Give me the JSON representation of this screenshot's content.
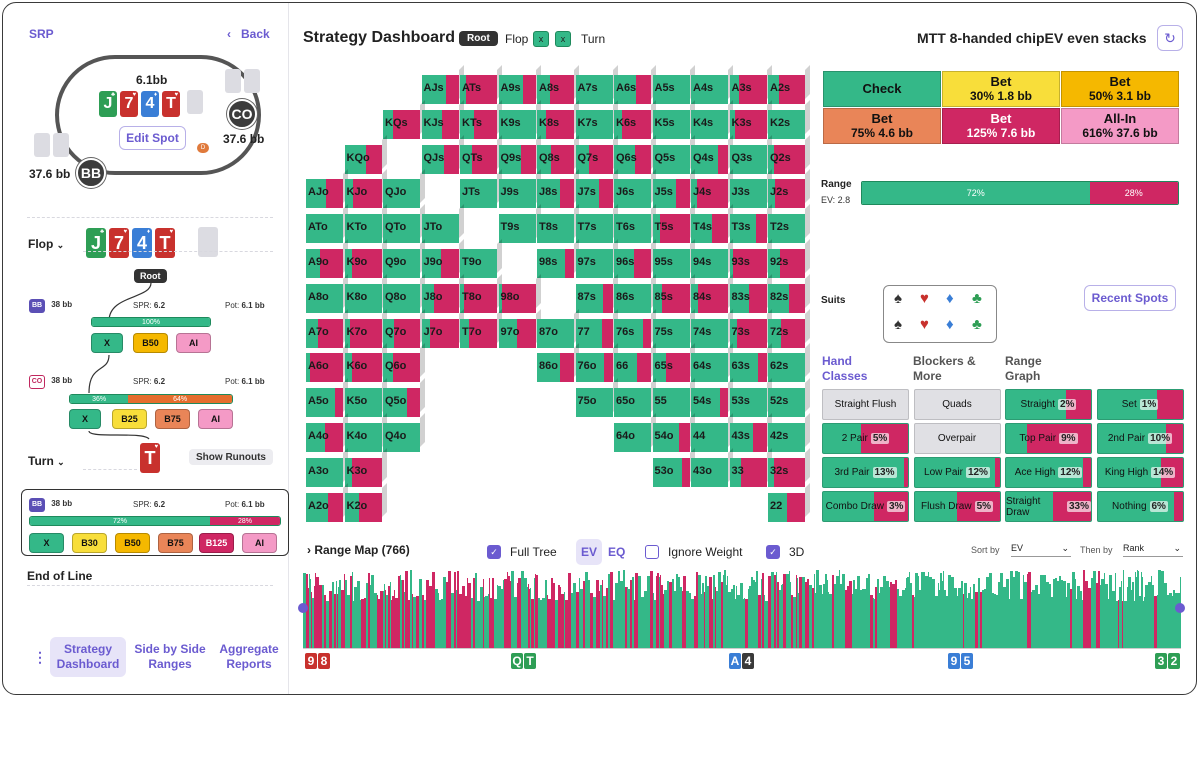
{
  "sidebar": {
    "spot_label": "SRP",
    "back_label": "Back",
    "pot_top": "6.1bb",
    "stack_co": "37.6 bb",
    "stack_bb": "37.6 bb",
    "board": [
      {
        "rank": "J",
        "color": "green"
      },
      {
        "rank": "7",
        "color": "red"
      },
      {
        "rank": "4",
        "color": "blue"
      },
      {
        "rank": "T",
        "color": "red"
      }
    ],
    "edit_spot": "Edit Spot",
    "dealer": "D",
    "pos_co": "CO",
    "pos_bb": "BB",
    "flop_label": "Flop",
    "flop_cards": [
      {
        "rank": "J",
        "color": "green"
      },
      {
        "rank": "7",
        "color": "red"
      },
      {
        "rank": "4",
        "color": "blue"
      },
      {
        "rank": "T",
        "color": "red"
      }
    ],
    "root_label": "Root",
    "node1": {
      "pos": "BB",
      "stack": "38 bb",
      "spr_label": "SPR:",
      "spr": "6.2",
      "pot_label": "Pot:",
      "pot": "6.1 bb",
      "bar_label": "100%",
      "actions": [
        "X",
        "B50",
        "AI"
      ]
    },
    "node2": {
      "pos": "CO",
      "stack": "38 bb",
      "spr_label": "SPR:",
      "spr": "6.2",
      "pot_label": "Pot:",
      "pot": "6.1 bb",
      "bar_left": "36%",
      "bar_right": "64%",
      "actions": [
        "X",
        "B25",
        "B75",
        "AI"
      ]
    },
    "turn_label": "Turn",
    "turn_card": {
      "rank": "T",
      "color": "red"
    },
    "show_runouts": "Show Runouts",
    "node3": {
      "pos": "BB",
      "stack": "38 bb",
      "spr_label": "SPR:",
      "spr": "6.2",
      "pot_label": "Pot:",
      "pot": "6.1 bb",
      "bar_left": "72%",
      "bar_right": "28%",
      "actions": [
        "X",
        "B30",
        "B50",
        "B75",
        "B125",
        "AI"
      ]
    },
    "end_of_line": "End of Line",
    "nav": [
      {
        "label": "Strategy Dashboard",
        "active": true
      },
      {
        "label": "Side by Side Ranges",
        "active": false
      },
      {
        "label": "Aggregate Reports",
        "active": false
      }
    ]
  },
  "header": {
    "title": "Strategy Dashboard",
    "root_tag": "Root",
    "flop": "Flop",
    "x1": "x",
    "x2": "x",
    "turn": "Turn",
    "game_title": "MTT 8-handed chipEV even stacks"
  },
  "grid": {
    "rows": [
      [
        "",
        "",
        "",
        "AJs",
        "ATs",
        "A9s",
        "A8s",
        "A7s",
        "A6s",
        "A5s",
        "A4s",
        "A3s",
        "A2s"
      ],
      [
        "",
        "",
        "KQs",
        "KJs",
        "KTs",
        "K9s",
        "K8s",
        "K7s",
        "K6s",
        "K5s",
        "K4s",
        "K3s",
        "K2s"
      ],
      [
        "",
        "KQo",
        "",
        "QJs",
        "QTs",
        "Q9s",
        "Q8s",
        "Q7s",
        "Q6s",
        "Q5s",
        "Q4s",
        "Q3s",
        "Q2s"
      ],
      [
        "AJo",
        "KJo",
        "QJo",
        "",
        "JTs",
        "J9s",
        "J8s",
        "J7s",
        "J6s",
        "J5s",
        "J4s",
        "J3s",
        "J2s"
      ],
      [
        "ATo",
        "KTo",
        "QTo",
        "JTo",
        "",
        "T9s",
        "T8s",
        "T7s",
        "T6s",
        "T5s",
        "T4s",
        "T3s",
        "T2s"
      ],
      [
        "A9o",
        "K9o",
        "Q9o",
        "J9o",
        "T9o",
        "",
        "98s",
        "97s",
        "96s",
        "95s",
        "94s",
        "93s",
        "92s"
      ],
      [
        "A8o",
        "K8o",
        "Q8o",
        "J8o",
        "T8o",
        "98o",
        "",
        "87s",
        "86s",
        "85s",
        "84s",
        "83s",
        "82s"
      ],
      [
        "A7o",
        "K7o",
        "Q7o",
        "J7o",
        "T7o",
        "97o",
        "87o",
        "77",
        "76s",
        "75s",
        "74s",
        "73s",
        "72s"
      ],
      [
        "A6o",
        "K6o",
        "Q6o",
        "",
        "",
        "",
        "86o",
        "76o",
        "66",
        "65s",
        "64s",
        "63s",
        "62s"
      ],
      [
        "A5o",
        "K5o",
        "Q5o",
        "",
        "",
        "",
        "",
        "75o",
        "65o",
        "55",
        "54s",
        "53s",
        "52s"
      ],
      [
        "A4o",
        "K4o",
        "Q4o",
        "",
        "",
        "",
        "",
        "",
        "64o",
        "54o",
        "44",
        "43s",
        "42s"
      ],
      [
        "A3o",
        "K3o",
        "",
        "",
        "",
        "",
        "",
        "",
        "",
        "53o",
        "43o",
        "33",
        "32s"
      ],
      [
        "A2o",
        "K2o",
        "",
        "",
        "",
        "",
        "",
        "",
        "",
        "",
        "",
        "",
        "22"
      ]
    ]
  },
  "actions": [
    {
      "name": "Check",
      "sub": "",
      "color": "#34b888"
    },
    {
      "name": "Bet",
      "sub": "30%  1.8 bb",
      "color": "#f8de3a"
    },
    {
      "name": "Bet",
      "sub": "50%  3.1 bb",
      "color": "#f5b800"
    },
    {
      "name": "Bet",
      "sub": "75%  4.6 bb",
      "color": "#e98558"
    },
    {
      "name": "Bet",
      "sub": "125%  7.6 bb",
      "color": "#cf2763"
    },
    {
      "name": "All-In",
      "sub": "616%  37.6 bb",
      "color": "#f49ac6"
    }
  ],
  "range": {
    "label": "Range",
    "ev": "EV: 2.8",
    "left": "72%",
    "right": "28%"
  },
  "suits": {
    "label": "Suits"
  },
  "recent_spots": "Recent Spots",
  "tabs": {
    "hand_classes": "Hand Classes",
    "blockers": "Blockers & More",
    "range_graph": "Range Graph"
  },
  "hand_classes": [
    {
      "name": "Straight Flush",
      "pct": "",
      "fill": 0,
      "disabled": true
    },
    {
      "name": "Quads",
      "pct": "",
      "fill": 0,
      "disabled": true
    },
    {
      "name": "Straight",
      "pct": "2%",
      "fill": 0.3,
      "disabled": false
    },
    {
      "name": "Set",
      "pct": "1%",
      "fill": 0.3,
      "disabled": false
    },
    {
      "name": "2 Pair",
      "pct": "5%",
      "fill": 0.55,
      "disabled": false
    },
    {
      "name": "Overpair",
      "pct": "",
      "fill": 0,
      "disabled": true
    },
    {
      "name": "Top Pair",
      "pct": "9%",
      "fill": 0.75,
      "disabled": false
    },
    {
      "name": "2nd Pair",
      "pct": "10%",
      "fill": 0.2,
      "disabled": false
    },
    {
      "name": "3rd Pair",
      "pct": "13%",
      "fill": 0.05,
      "disabled": false
    },
    {
      "name": "Low Pair",
      "pct": "12%",
      "fill": 0.05,
      "disabled": false
    },
    {
      "name": "Ace High",
      "pct": "12%",
      "fill": 0.1,
      "disabled": false
    },
    {
      "name": "King High",
      "pct": "14%",
      "fill": 0.25,
      "disabled": false
    },
    {
      "name": "Combo Draw",
      "pct": "3%",
      "fill": 0.4,
      "disabled": false
    },
    {
      "name": "Flush Draw",
      "pct": "5%",
      "fill": 0.5,
      "disabled": false
    },
    {
      "name": "Straight Draw",
      "pct": "33%",
      "fill": 0.45,
      "disabled": false
    },
    {
      "name": "Nothing",
      "pct": "6%",
      "fill": 0.1,
      "disabled": false
    }
  ],
  "bottom": {
    "range_map": "Range Map (766)",
    "full_tree": "Full Tree",
    "ev": "EV",
    "eq": "EQ",
    "ignore_weight": "Ignore Weight",
    "three_d": "3D",
    "sort_by": "Sort by",
    "sort_value": "EV",
    "then_by": "Then by",
    "then_value": "Rank"
  },
  "hist_marks": [
    {
      "cards": [
        {
          "r": "9",
          "c": "red"
        },
        {
          "r": "8",
          "c": "red"
        }
      ]
    },
    {
      "cards": [
        {
          "r": "Q",
          "c": "green"
        },
        {
          "r": "T",
          "c": "green"
        }
      ]
    },
    {
      "cards": [
        {
          "r": "A",
          "c": "blue"
        },
        {
          "r": "4",
          "c": "dark"
        }
      ]
    },
    {
      "cards": [
        {
          "r": "9",
          "c": "blue"
        },
        {
          "r": "5",
          "c": "blue"
        }
      ]
    },
    {
      "cards": [
        {
          "r": "3",
          "c": "green"
        },
        {
          "r": "2",
          "c": "green"
        }
      ]
    }
  ],
  "colors": {
    "check": "#34b888",
    "bet_big": "#cf2763",
    "accent": "#6b5bd0"
  }
}
